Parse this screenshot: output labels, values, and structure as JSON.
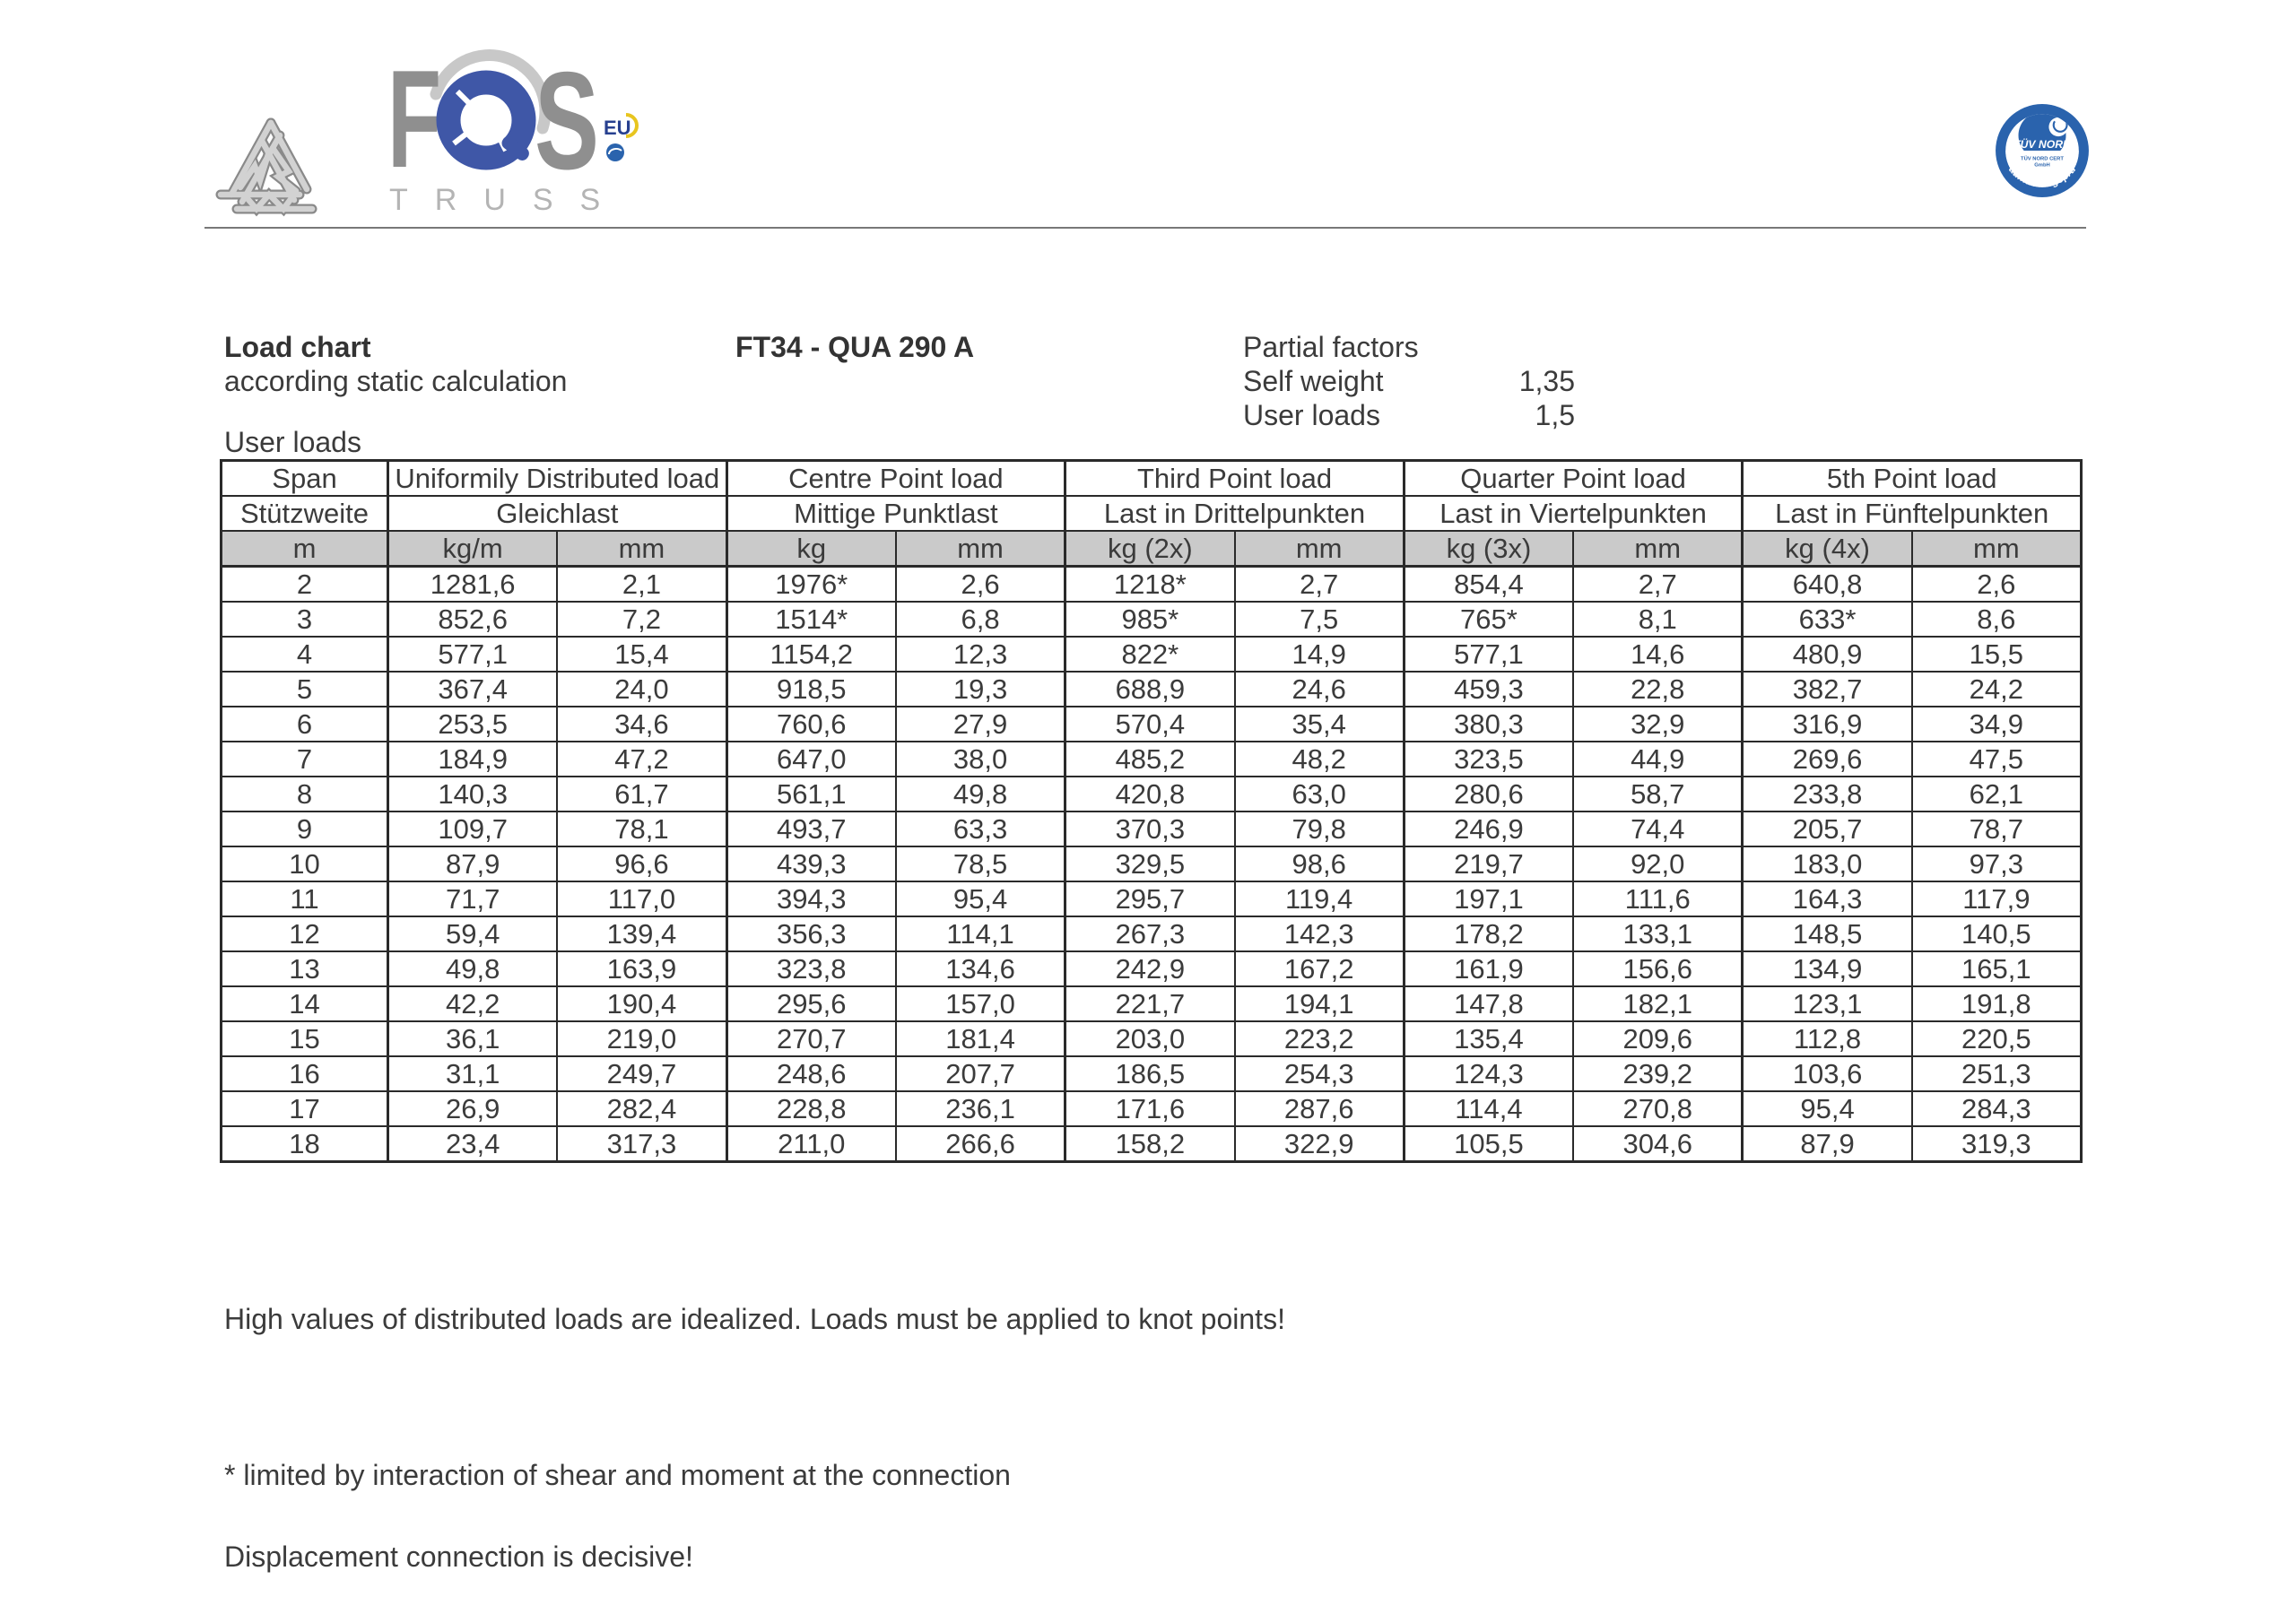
{
  "branding": {
    "logo_letters": {
      "f": "F",
      "q": "Q",
      "s": "S"
    },
    "logo_subtext": "TRUSS",
    "eu_badge": "EU",
    "tuv_badge": {
      "line1": "TÜV NORD",
      "line2": "TÜV NORD CERT",
      "line3": "GmbH",
      "arc_text": "Baumuster geprüft"
    }
  },
  "title": {
    "heading": "Load chart",
    "subheading": "according static calculation",
    "model": "FT34 - QUA 290 A",
    "partial_factors_label": "Partial factors",
    "self_weight_label": "Self weight",
    "self_weight_value": "1,35",
    "user_loads_label": "User loads",
    "user_loads_value": "1,5"
  },
  "table_label": "User loads",
  "table": {
    "groups": [
      {
        "en": "Span",
        "de": "Stützweite"
      },
      {
        "en": "Uniformily Distributed load",
        "de": "Gleichlast"
      },
      {
        "en": "Centre Point load",
        "de": "Mittige Punktlast"
      },
      {
        "en": "Third Point load",
        "de": "Last in Drittelpunkten"
      },
      {
        "en": "Quarter Point load",
        "de": "Last in Viertelpunkten"
      },
      {
        "en": "5th Point load",
        "de": "Last in Fünftelpunkten"
      }
    ],
    "units": [
      "m",
      "kg/m",
      "mm",
      "kg",
      "mm",
      "kg (2x)",
      "mm",
      "kg (3x)",
      "mm",
      "kg (4x)",
      "mm"
    ],
    "rows": [
      [
        "2",
        "1281,6",
        "2,1",
        "1976*",
        "2,6",
        "1218*",
        "2,7",
        "854,4",
        "2,7",
        "640,8",
        "2,6"
      ],
      [
        "3",
        "852,6",
        "7,2",
        "1514*",
        "6,8",
        "985*",
        "7,5",
        "765*",
        "8,1",
        "633*",
        "8,6"
      ],
      [
        "4",
        "577,1",
        "15,4",
        "1154,2",
        "12,3",
        "822*",
        "14,9",
        "577,1",
        "14,6",
        "480,9",
        "15,5"
      ],
      [
        "5",
        "367,4",
        "24,0",
        "918,5",
        "19,3",
        "688,9",
        "24,6",
        "459,3",
        "22,8",
        "382,7",
        "24,2"
      ],
      [
        "6",
        "253,5",
        "34,6",
        "760,6",
        "27,9",
        "570,4",
        "35,4",
        "380,3",
        "32,9",
        "316,9",
        "34,9"
      ],
      [
        "7",
        "184,9",
        "47,2",
        "647,0",
        "38,0",
        "485,2",
        "48,2",
        "323,5",
        "44,9",
        "269,6",
        "47,5"
      ],
      [
        "8",
        "140,3",
        "61,7",
        "561,1",
        "49,8",
        "420,8",
        "63,0",
        "280,6",
        "58,7",
        "233,8",
        "62,1"
      ],
      [
        "9",
        "109,7",
        "78,1",
        "493,7",
        "63,3",
        "370,3",
        "79,8",
        "246,9",
        "74,4",
        "205,7",
        "78,7"
      ],
      [
        "10",
        "87,9",
        "96,6",
        "439,3",
        "78,5",
        "329,5",
        "98,6",
        "219,7",
        "92,0",
        "183,0",
        "97,3"
      ],
      [
        "11",
        "71,7",
        "117,0",
        "394,3",
        "95,4",
        "295,7",
        "119,4",
        "197,1",
        "111,6",
        "164,3",
        "117,9"
      ],
      [
        "12",
        "59,4",
        "139,4",
        "356,3",
        "114,1",
        "267,3",
        "142,3",
        "178,2",
        "133,1",
        "148,5",
        "140,5"
      ],
      [
        "13",
        "49,8",
        "163,9",
        "323,8",
        "134,6",
        "242,9",
        "167,2",
        "161,9",
        "156,6",
        "134,9",
        "165,1"
      ],
      [
        "14",
        "42,2",
        "190,4",
        "295,6",
        "157,0",
        "221,7",
        "194,1",
        "147,8",
        "182,1",
        "123,1",
        "191,8"
      ],
      [
        "15",
        "36,1",
        "219,0",
        "270,7",
        "181,4",
        "203,0",
        "223,2",
        "135,4",
        "209,6",
        "112,8",
        "220,5"
      ],
      [
        "16",
        "31,1",
        "249,7",
        "248,6",
        "207,7",
        "186,5",
        "254,3",
        "124,3",
        "239,2",
        "103,6",
        "251,3"
      ],
      [
        "17",
        "26,9",
        "282,4",
        "228,8",
        "236,1",
        "171,6",
        "287,6",
        "114,4",
        "270,8",
        "95,4",
        "284,3"
      ],
      [
        "18",
        "23,4",
        "317,3",
        "211,0",
        "266,6",
        "158,2",
        "322,9",
        "105,5",
        "304,6",
        "87,9",
        "319,3"
      ]
    ]
  },
  "footer": {
    "note1": "High values of distributed loads are idealized. Loads must be applied to knot points!",
    "note2": "* limited by interaction of shear and moment at the connection",
    "note3": "Displacement connection is decisive!"
  },
  "colors": {
    "logo_blue": "#3f57a7",
    "tuv_blue": "#2a63ad",
    "logo_gray": "#8f8f8f",
    "header_row_gray": "#cacaca",
    "text": "#3b3b3b",
    "border": "#2a2a2a"
  }
}
